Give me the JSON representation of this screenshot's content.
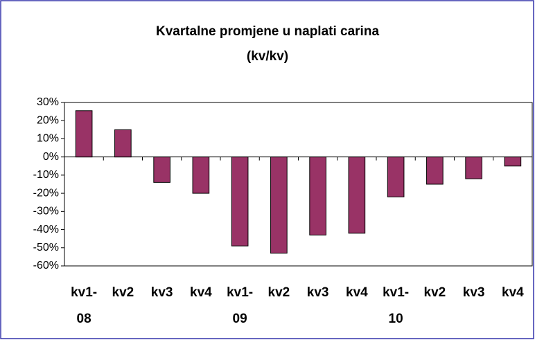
{
  "chart_data": {
    "type": "bar",
    "title": "Kvartalne promjene u naplati carina",
    "subtitle": "(kv/kv)",
    "categories": [
      "kv1-08",
      "kv2",
      "kv3",
      "kv4",
      "kv1-09",
      "kv2",
      "kv3",
      "kv4",
      "kv1-10",
      "kv2",
      "kv3",
      "kv4"
    ],
    "values": [
      25.5,
      15,
      -14,
      -20,
      -49,
      -53,
      -43,
      -42,
      -22,
      -15,
      -12,
      -5
    ],
    "color": "#993366",
    "ylim": [
      -60,
      30
    ],
    "yticks": [
      {
        "value": 30,
        "label": "30%"
      },
      {
        "value": 20,
        "label": "20%"
      },
      {
        "value": 10,
        "label": "10%"
      },
      {
        "value": 0,
        "label": "0%"
      },
      {
        "value": -10,
        "label": "-10%"
      },
      {
        "value": -20,
        "label": "-20%"
      },
      {
        "value": -30,
        "label": "-30%"
      },
      {
        "value": -40,
        "label": "-40%"
      },
      {
        "value": -50,
        "label": "-50%"
      },
      {
        "value": -60,
        "label": "-60%"
      }
    ],
    "grid": false
  }
}
